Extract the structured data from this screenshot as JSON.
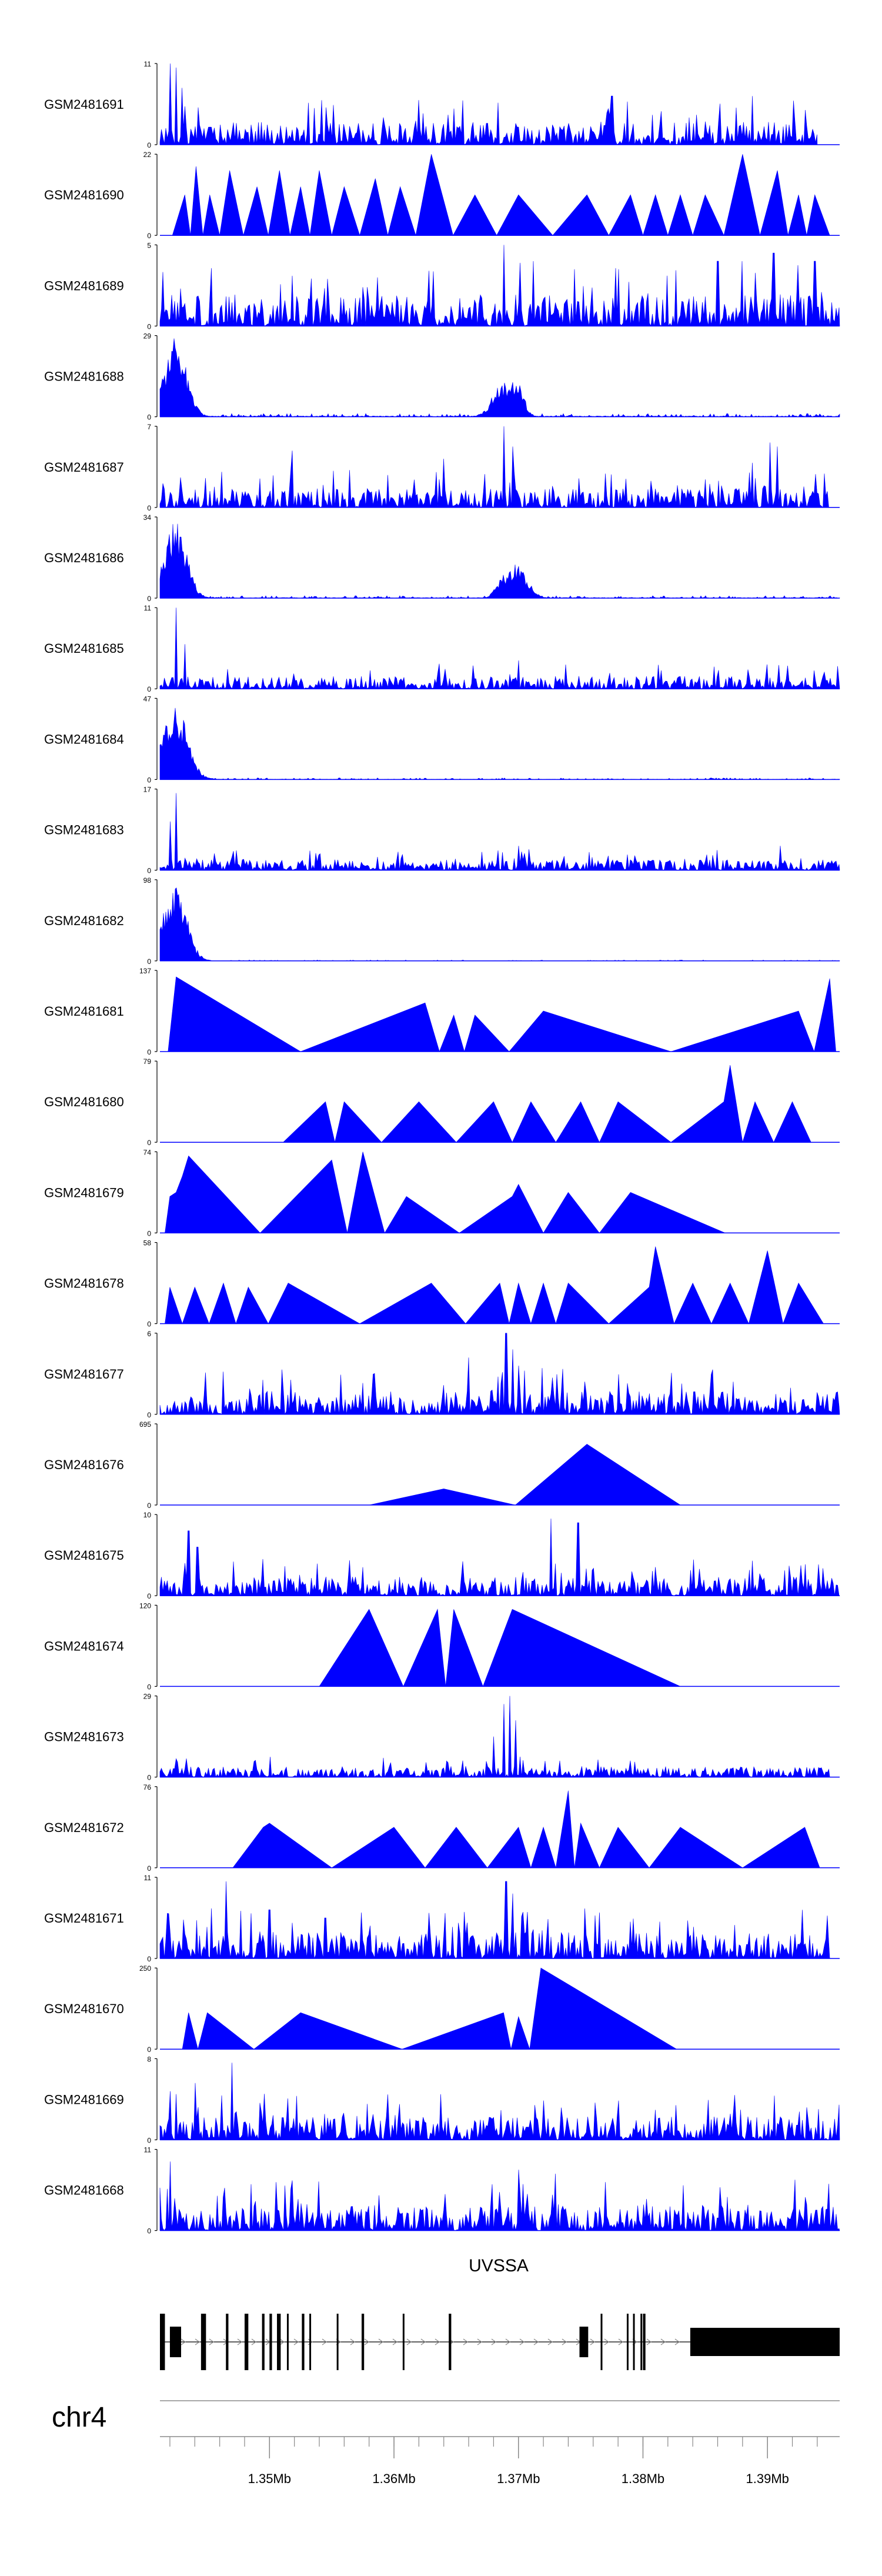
{
  "chart_data": {
    "type": "area",
    "title": "",
    "chromosome": "chr4",
    "xlim_mb": [
      1.3412,
      1.3958
    ],
    "x_ticks": [
      {
        "value": 1.35,
        "label": "1.35Mb"
      },
      {
        "value": 1.36,
        "label": "1.36Mb"
      },
      {
        "value": 1.37,
        "label": "1.37Mb"
      },
      {
        "value": 1.38,
        "label": "1.38Mb"
      },
      {
        "value": 1.39,
        "label": "1.39Mb"
      }
    ],
    "fill_color": "#0000ff",
    "tracks": [
      {
        "name": "GSM2481691",
        "ymax": "11",
        "ymin": "0",
        "max": 11,
        "kind": "dense",
        "seed": 1,
        "level": 0.22,
        "spikes": [
          [
            1.342,
            1.0
          ],
          [
            1.3425,
            0.95
          ],
          [
            1.343,
            0.7
          ],
          [
            1.362,
            0.55
          ],
          [
            1.3775,
            0.6
          ],
          [
            1.3888,
            0.6
          ]
        ],
        "xstart": 1.3412,
        "xend": 1.394
      },
      {
        "name": "GSM2481690",
        "ymax": "22",
        "ymin": "0",
        "max": 22,
        "kind": "triangles",
        "peaks": [
          [
            1.3432,
            0.5
          ],
          [
            1.3441,
            0.85
          ],
          [
            1.3452,
            0.5
          ],
          [
            1.3468,
            0.8
          ],
          [
            1.349,
            0.6
          ],
          [
            1.3508,
            0.8
          ],
          [
            1.3525,
            0.6
          ],
          [
            1.354,
            0.8
          ],
          [
            1.356,
            0.6
          ],
          [
            1.3585,
            0.7
          ],
          [
            1.3605,
            0.6
          ],
          [
            1.363,
            1.0
          ],
          [
            1.3665,
            0.5
          ],
          [
            1.37,
            0.5
          ],
          [
            1.3755,
            0.5
          ],
          [
            1.379,
            0.5
          ],
          [
            1.381,
            0.5
          ],
          [
            1.383,
            0.5
          ],
          [
            1.385,
            0.5
          ],
          [
            1.388,
            1.0
          ],
          [
            1.3908,
            0.8
          ],
          [
            1.3925,
            0.5
          ],
          [
            1.3938,
            0.5
          ]
        ],
        "xstart": 1.3412,
        "xend": 1.395
      },
      {
        "name": "GSM2481689",
        "ymax": "5",
        "ymin": "0",
        "max": 5,
        "kind": "dense",
        "seed": 3,
        "level": 0.3,
        "spikes": [
          [
            1.3688,
            1.0
          ],
          [
            1.3712,
            0.8
          ],
          [
            1.3745,
            0.7
          ],
          [
            1.378,
            0.7
          ],
          [
            1.386,
            0.8
          ],
          [
            1.388,
            0.8
          ],
          [
            1.3905,
            0.9
          ],
          [
            1.3938,
            0.8
          ]
        ],
        "xstart": 1.3412,
        "xend": 1.3958
      },
      {
        "name": "GSM2481688",
        "ymax": "29",
        "ymin": "0",
        "max": 29,
        "kind": "cluster",
        "seed": 4,
        "level": 0.04,
        "clusters": [
          [
            1.3425,
            0.0012,
            1.0
          ],
          [
            1.3414,
            0.0008,
            0.55
          ],
          [
            1.3688,
            0.0012,
            0.45
          ],
          [
            1.3698,
            0.0008,
            0.5
          ]
        ],
        "xstart": 1.3412,
        "xend": 1.3958
      },
      {
        "name": "GSM2481687",
        "ymax": "7",
        "ymin": "0",
        "max": 7,
        "kind": "dense",
        "seed": 5,
        "level": 0.18,
        "spikes": [
          [
            1.3688,
            1.0
          ],
          [
            1.3695,
            0.75
          ],
          [
            1.3518,
            0.7
          ],
          [
            1.364,
            0.6
          ],
          [
            1.3902,
            0.8
          ],
          [
            1.3908,
            0.75
          ],
          [
            1.3888,
            0.55
          ]
        ],
        "xstart": 1.3412,
        "xend": 1.395
      },
      {
        "name": "GSM2481686",
        "ymax": "34",
        "ymin": "0",
        "max": 34,
        "kind": "cluster",
        "seed": 6,
        "level": 0.03,
        "clusters": [
          [
            1.3425,
            0.0012,
            1.0
          ],
          [
            1.3415,
            0.0006,
            0.5
          ],
          [
            1.3698,
            0.0012,
            0.45
          ],
          [
            1.3688,
            0.0008,
            0.3
          ]
        ],
        "xstart": 1.3412,
        "xend": 1.3958
      },
      {
        "name": "GSM2481685",
        "ymax": "11",
        "ymin": "0",
        "max": 11,
        "kind": "dense",
        "seed": 7,
        "level": 0.12,
        "spikes": [
          [
            1.3425,
            1.0
          ],
          [
            1.3432,
            0.55
          ],
          [
            1.37,
            0.35
          ],
          [
            1.39,
            0.3
          ]
        ],
        "xstart": 1.3412,
        "xend": 1.3958
      },
      {
        "name": "GSM2481684",
        "ymax": "47",
        "ymin": "0",
        "max": 47,
        "kind": "cluster",
        "seed": 8,
        "level": 0.02,
        "clusters": [
          [
            1.3424,
            0.0014,
            0.95
          ],
          [
            1.3416,
            0.0007,
            0.6
          ]
        ],
        "xstart": 1.3412,
        "xend": 1.3958
      },
      {
        "name": "GSM2481683",
        "ymax": "17",
        "ymin": "0",
        "max": 17,
        "kind": "dense",
        "seed": 9,
        "level": 0.1,
        "spikes": [
          [
            1.3425,
            0.95
          ],
          [
            1.342,
            0.6
          ],
          [
            1.37,
            0.3
          ],
          [
            1.391,
            0.3
          ]
        ],
        "xstart": 1.3412,
        "xend": 1.3958
      },
      {
        "name": "GSM2481682",
        "ymax": "98",
        "ymin": "0",
        "max": 98,
        "kind": "cluster",
        "seed": 10,
        "level": 0.01,
        "clusters": [
          [
            1.3424,
            0.0013,
            0.98
          ],
          [
            1.3415,
            0.0006,
            0.55
          ]
        ],
        "xstart": 1.3412,
        "xend": 1.3958
      },
      {
        "name": "GSM2481681",
        "ymax": "137",
        "ymin": "0",
        "max": 137,
        "kind": "triangles",
        "peaks": [
          [
            1.3425,
            0.92
          ],
          [
            1.3625,
            0.6
          ],
          [
            1.3648,
            0.45
          ],
          [
            1.3665,
            0.45
          ],
          [
            1.372,
            0.5
          ],
          [
            1.3925,
            0.5
          ],
          [
            1.395,
            0.9
          ]
        ],
        "xstart": 1.3412,
        "xend": 1.3955
      },
      {
        "name": "GSM2481680",
        "ymax": "79",
        "ymin": "0",
        "max": 79,
        "kind": "triangles",
        "peaks": [
          [
            1.3545,
            0.5
          ],
          [
            1.356,
            0.5
          ],
          [
            1.362,
            0.5
          ],
          [
            1.368,
            0.5
          ],
          [
            1.371,
            0.5
          ],
          [
            1.375,
            0.5
          ],
          [
            1.378,
            0.5
          ],
          [
            1.3865,
            0.5
          ],
          [
            1.387,
            0.95
          ],
          [
            1.389,
            0.5
          ],
          [
            1.392,
            0.5
          ]
        ],
        "xstart": 1.3477,
        "xend": 1.3935
      },
      {
        "name": "GSM2481679",
        "ymax": "74",
        "ymin": "0",
        "max": 74,
        "kind": "triangles",
        "peaks": [
          [
            1.342,
            0.45
          ],
          [
            1.3425,
            0.5
          ],
          [
            1.343,
            0.7
          ],
          [
            1.3435,
            0.95
          ],
          [
            1.355,
            0.9
          ],
          [
            1.3575,
            1.0
          ],
          [
            1.361,
            0.45
          ],
          [
            1.3695,
            0.45
          ],
          [
            1.37,
            0.6
          ],
          [
            1.374,
            0.5
          ],
          [
            1.379,
            0.5
          ]
        ],
        "xstart": 1.3412,
        "xend": 1.3866
      },
      {
        "name": "GSM2481678",
        "ymax": "58",
        "ymin": "0",
        "max": 58,
        "kind": "triangles",
        "peaks": [
          [
            1.342,
            0.45
          ],
          [
            1.344,
            0.45
          ],
          [
            1.3463,
            0.5
          ],
          [
            1.3483,
            0.45
          ],
          [
            1.3515,
            0.5
          ],
          [
            1.363,
            0.5
          ],
          [
            1.3685,
            0.5
          ],
          [
            1.37,
            0.5
          ],
          [
            1.372,
            0.5
          ],
          [
            1.374,
            0.5
          ],
          [
            1.3805,
            0.45
          ],
          [
            1.381,
            0.95
          ],
          [
            1.384,
            0.5
          ],
          [
            1.387,
            0.5
          ],
          [
            1.39,
            0.9
          ],
          [
            1.3925,
            0.5
          ]
        ],
        "xstart": 1.3412,
        "xend": 1.3945
      },
      {
        "name": "GSM2481677",
        "ymax": "6",
        "ymin": "0",
        "max": 6,
        "kind": "dense",
        "seed": 15,
        "level": 0.22,
        "spikes": [
          [
            1.369,
            1.0
          ],
          [
            1.3695,
            0.8
          ],
          [
            1.366,
            0.7
          ],
          [
            1.37,
            0.6
          ]
        ],
        "xstart": 1.3412,
        "xend": 1.3958
      },
      {
        "name": "GSM2481676",
        "ymax": "695",
        "ymin": "0",
        "max": 695,
        "kind": "triangles",
        "peaks": [
          [
            1.364,
            0.2
          ],
          [
            1.3755,
            0.75
          ],
          [
            1.3755,
            0.75
          ]
        ],
        "xstart": 1.352,
        "xend": 1.383
      },
      {
        "name": "GSM2481675",
        "ymax": "10",
        "ymin": "0",
        "max": 10,
        "kind": "dense",
        "seed": 17,
        "level": 0.18,
        "spikes": [
          [
            1.3726,
            0.95
          ],
          [
            1.3748,
            0.9
          ],
          [
            1.3435,
            0.8
          ],
          [
            1.3442,
            0.6
          ]
        ],
        "xstart": 1.3412,
        "xend": 1.3958
      },
      {
        "name": "GSM2481674",
        "ymax": "120",
        "ymin": "0",
        "max": 120,
        "kind": "triangles",
        "peaks": [
          [
            1.358,
            0.95
          ],
          [
            1.3635,
            0.95
          ],
          [
            1.3648,
            0.95
          ],
          [
            1.3695,
            0.95
          ]
        ],
        "xstart": 1.35,
        "xend": 1.383
      },
      {
        "name": "GSM2481673",
        "ymax": "29",
        "ymin": "0",
        "max": 29,
        "kind": "dense",
        "seed": 19,
        "level": 0.1,
        "spikes": [
          [
            1.3688,
            0.9
          ],
          [
            1.3693,
            1.0
          ],
          [
            1.3698,
            0.7
          ],
          [
            1.368,
            0.5
          ]
        ],
        "xstart": 1.3412,
        "xend": 1.395
      },
      {
        "name": "GSM2481672",
        "ymax": "76",
        "ymin": "0",
        "max": 76,
        "kind": "triangles",
        "peaks": [
          [
            1.3495,
            0.5
          ],
          [
            1.35,
            0.55
          ],
          [
            1.36,
            0.5
          ],
          [
            1.365,
            0.5
          ],
          [
            1.37,
            0.5
          ],
          [
            1.372,
            0.5
          ],
          [
            1.374,
            0.95
          ],
          [
            1.375,
            0.55
          ],
          [
            1.378,
            0.5
          ],
          [
            1.383,
            0.5
          ],
          [
            1.393,
            0.5
          ]
        ],
        "xstart": 1.3446,
        "xend": 1.3942
      },
      {
        "name": "GSM2481671",
        "ymax": "11",
        "ymin": "0",
        "max": 11,
        "kind": "dense",
        "seed": 21,
        "level": 0.25,
        "spikes": [
          [
            1.3465,
            0.95
          ],
          [
            1.369,
            0.95
          ],
          [
            1.3695,
            0.8
          ],
          [
            1.35,
            0.6
          ],
          [
            1.3545,
            0.5
          ],
          [
            1.3928,
            0.6
          ]
        ],
        "xstart": 1.3412,
        "xend": 1.395
      },
      {
        "name": "GSM2481670",
        "ymax": "250",
        "ymin": "0",
        "max": 250,
        "kind": "triangles",
        "peaks": [
          [
            1.3435,
            0.45
          ],
          [
            1.345,
            0.45
          ],
          [
            1.3525,
            0.45
          ],
          [
            1.3688,
            0.45
          ],
          [
            1.37,
            0.4
          ],
          [
            1.3718,
            1.0
          ]
        ],
        "xstart": 1.3425,
        "xend": 1.3827
      },
      {
        "name": "GSM2481669",
        "ymax": "8",
        "ymin": "0",
        "max": 8,
        "kind": "dense",
        "seed": 23,
        "level": 0.22,
        "spikes": [
          [
            1.347,
            0.95
          ],
          [
            1.344,
            0.7
          ],
          [
            1.342,
            0.6
          ]
        ],
        "xstart": 1.3412,
        "xend": 1.3958
      },
      {
        "name": "GSM2481668",
        "ymax": "11",
        "ymin": "0",
        "max": 11,
        "kind": "dense",
        "seed": 24,
        "level": 0.25,
        "spikes": [
          [
            1.342,
            0.85
          ],
          [
            1.37,
            0.75
          ],
          [
            1.373,
            0.7
          ]
        ],
        "xstart": 1.3412,
        "xend": 1.3958
      }
    ],
    "gene": {
      "name": "UVSSA",
      "strand": "+",
      "start_mb": 1.3412,
      "end_mb": 1.3958,
      "exons": [
        [
          1.3412,
          1.3416
        ],
        [
          1.342,
          1.3429
        ],
        [
          1.3445,
          1.3449
        ],
        [
          1.3465,
          1.3467
        ],
        [
          1.348,
          1.3483
        ],
        [
          1.3494,
          1.3496
        ],
        [
          1.35,
          1.3502
        ],
        [
          1.3506,
          1.3509
        ],
        [
          1.3514,
          1.3515
        ],
        [
          1.3526,
          1.3528
        ],
        [
          1.3532,
          1.3532
        ],
        [
          1.3554,
          1.3555
        ],
        [
          1.3574,
          1.3576
        ],
        [
          1.3607,
          1.3608
        ],
        [
          1.3644,
          1.3646
        ],
        [
          1.3749,
          1.3756
        ],
        [
          1.3766,
          1.3767
        ],
        [
          1.3787,
          1.3788
        ],
        [
          1.3792,
          1.3793
        ],
        [
          1.3798,
          1.3799
        ],
        [
          1.38,
          1.3802
        ],
        [
          1.3838,
          1.3958
        ],
        [
          1.386,
          1.3862
        ]
      ],
      "thick_from_mb": 1.3838
    }
  }
}
